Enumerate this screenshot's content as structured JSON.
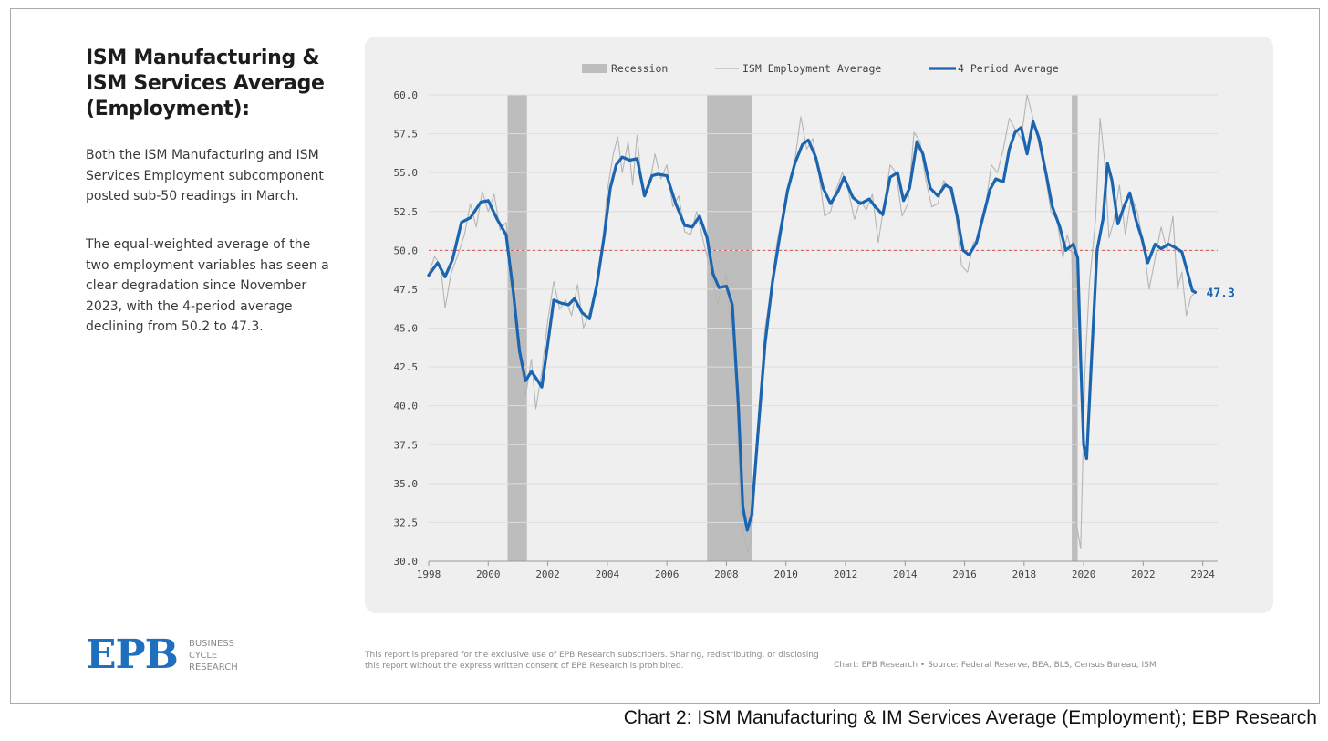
{
  "side": {
    "title": "ISM Manufacturing & ISM Services Average (Employment):",
    "paragraph1": "Both the ISM Manufacturing and ISM Services Employment subcomponent posted sub-50 readings in March.",
    "paragraph2": "The equal-weighted average of the two employment variables has seen a clear degradation since November 2023, with the 4-period average declining from 50.2 to 47.3."
  },
  "logo": {
    "mark": "EPB",
    "line1": "BUSINESS",
    "line2": "CYCLE",
    "line3": "RESEARCH",
    "color": "#1f6fbf"
  },
  "footer": {
    "disclaimer": "This report is prepared for the exclusive use of EPB Research subscribers. Sharing, redistributing, or disclosing this report without the express written consent of EPB Research is prohibited.",
    "credit": "Chart: EPB Research  •  Source: Federal Reserve, BEA, BLS, Census Bureau, ISM"
  },
  "caption": "Chart 2: ISM Manufacturing & IM Services Average (Employment); EBP Research",
  "chart_data": {
    "type": "line",
    "title": "",
    "xlabel": "",
    "ylabel": "",
    "xlim": [
      1998,
      2024.5
    ],
    "ylim": [
      30,
      60
    ],
    "x_ticks": [
      1998,
      2000,
      2002,
      2004,
      2006,
      2008,
      2010,
      2012,
      2014,
      2016,
      2018,
      2020,
      2022,
      2024
    ],
    "y_ticks": [
      "30.0",
      "32.5",
      "35.0",
      "37.5",
      "40.0",
      "42.5",
      "45.0",
      "47.5",
      "50.0",
      "52.5",
      "55.0",
      "57.5",
      "60.0"
    ],
    "grid": true,
    "legend_position": "top-center",
    "reference_line": {
      "y": 50,
      "color": "#d9534f"
    },
    "recessions": {
      "name": "Recession",
      "color": "#bdbdbd",
      "periods": [
        [
          2000.65,
          2001.3
        ],
        [
          2007.35,
          2008.85
        ],
        [
          2019.6,
          2019.8
        ]
      ]
    },
    "end_label": "47.3",
    "series": [
      {
        "name": "ISM Employment Average",
        "color": "#b5b5b5",
        "points": [
          [
            1998.0,
            48.5
          ],
          [
            1998.2,
            49.6
          ],
          [
            1998.4,
            49.0
          ],
          [
            1998.55,
            46.3
          ],
          [
            1998.75,
            48.5
          ],
          [
            1999.0,
            49.8
          ],
          [
            1999.2,
            51.0
          ],
          [
            1999.4,
            53.0
          ],
          [
            1999.6,
            51.5
          ],
          [
            1999.8,
            53.8
          ],
          [
            2000.0,
            52.5
          ],
          [
            2000.2,
            53.6
          ],
          [
            2000.4,
            51.3
          ],
          [
            2000.6,
            51.8
          ],
          [
            2000.8,
            47.5
          ],
          [
            2000.95,
            44.5
          ],
          [
            2001.1,
            43.0
          ],
          [
            2001.25,
            40.6
          ],
          [
            2001.45,
            43.0
          ],
          [
            2001.6,
            39.8
          ],
          [
            2001.8,
            42.2
          ],
          [
            2002.0,
            45.5
          ],
          [
            2002.2,
            48.0
          ],
          [
            2002.4,
            46.2
          ],
          [
            2002.6,
            46.8
          ],
          [
            2002.8,
            45.8
          ],
          [
            2003.0,
            47.8
          ],
          [
            2003.2,
            45.0
          ],
          [
            2003.4,
            46.0
          ],
          [
            2003.6,
            47.5
          ],
          [
            2003.8,
            49.5
          ],
          [
            2004.0,
            53.8
          ],
          [
            2004.2,
            56.2
          ],
          [
            2004.35,
            57.3
          ],
          [
            2004.5,
            55.0
          ],
          [
            2004.7,
            57.0
          ],
          [
            2004.85,
            54.2
          ],
          [
            2005.0,
            57.4
          ],
          [
            2005.2,
            53.5
          ],
          [
            2005.4,
            54.0
          ],
          [
            2005.6,
            56.2
          ],
          [
            2005.8,
            54.6
          ],
          [
            2006.0,
            55.5
          ],
          [
            2006.2,
            52.8
          ],
          [
            2006.4,
            53.5
          ],
          [
            2006.6,
            51.2
          ],
          [
            2006.8,
            51.0
          ],
          [
            2007.0,
            52.5
          ],
          [
            2007.2,
            50.8
          ],
          [
            2007.35,
            49.6
          ],
          [
            2007.5,
            48.5
          ],
          [
            2007.7,
            46.5
          ],
          [
            2007.85,
            47.6
          ],
          [
            2008.0,
            48.5
          ],
          [
            2008.15,
            45.0
          ],
          [
            2008.3,
            44.0
          ],
          [
            2008.45,
            33.5
          ],
          [
            2008.6,
            31.5
          ],
          [
            2008.75,
            30.5
          ],
          [
            2008.9,
            33.0
          ],
          [
            2009.1,
            40.0
          ],
          [
            2009.3,
            45.0
          ],
          [
            2009.5,
            47.5
          ],
          [
            2009.7,
            50.5
          ],
          [
            2009.9,
            52.5
          ],
          [
            2010.1,
            54.0
          ],
          [
            2010.3,
            55.8
          ],
          [
            2010.5,
            58.6
          ],
          [
            2010.7,
            56.5
          ],
          [
            2010.9,
            57.2
          ],
          [
            2011.1,
            55.0
          ],
          [
            2011.3,
            52.2
          ],
          [
            2011.5,
            52.5
          ],
          [
            2011.7,
            54.0
          ],
          [
            2011.9,
            55.0
          ],
          [
            2012.1,
            53.8
          ],
          [
            2012.3,
            52.0
          ],
          [
            2012.5,
            53.2
          ],
          [
            2012.7,
            52.6
          ],
          [
            2012.9,
            53.6
          ],
          [
            2013.1,
            50.5
          ],
          [
            2013.3,
            53.0
          ],
          [
            2013.5,
            55.5
          ],
          [
            2013.7,
            55.0
          ],
          [
            2013.9,
            52.2
          ],
          [
            2014.1,
            53.0
          ],
          [
            2014.3,
            57.6
          ],
          [
            2014.5,
            57.0
          ],
          [
            2014.7,
            54.5
          ],
          [
            2014.9,
            52.8
          ],
          [
            2015.1,
            53.0
          ],
          [
            2015.3,
            54.5
          ],
          [
            2015.5,
            54.0
          ],
          [
            2015.7,
            52.4
          ],
          [
            2015.9,
            49.0
          ],
          [
            2016.1,
            48.6
          ],
          [
            2016.3,
            50.5
          ],
          [
            2016.5,
            50.8
          ],
          [
            2016.7,
            52.8
          ],
          [
            2016.9,
            55.5
          ],
          [
            2017.1,
            55.0
          ],
          [
            2017.3,
            56.5
          ],
          [
            2017.5,
            58.5
          ],
          [
            2017.7,
            57.8
          ],
          [
            2017.9,
            57.2
          ],
          [
            2018.1,
            60.0
          ],
          [
            2018.3,
            58.5
          ],
          [
            2018.5,
            56.8
          ],
          [
            2018.7,
            55.0
          ],
          [
            2018.9,
            52.5
          ],
          [
            2019.1,
            52.0
          ],
          [
            2019.3,
            49.5
          ],
          [
            2019.45,
            51.0
          ],
          [
            2019.6,
            49.8
          ],
          [
            2019.75,
            32.5
          ],
          [
            2019.9,
            30.8
          ],
          [
            2020.05,
            42.5
          ],
          [
            2020.2,
            48.0
          ],
          [
            2020.4,
            52.0
          ],
          [
            2020.55,
            58.5
          ],
          [
            2020.7,
            55.8
          ],
          [
            2020.85,
            50.8
          ],
          [
            2021.0,
            51.8
          ],
          [
            2021.2,
            54.2
          ],
          [
            2021.4,
            51.0
          ],
          [
            2021.6,
            53.5
          ],
          [
            2021.8,
            52.5
          ],
          [
            2022.0,
            50.5
          ],
          [
            2022.2,
            47.5
          ],
          [
            2022.4,
            49.5
          ],
          [
            2022.6,
            51.5
          ],
          [
            2022.8,
            50.0
          ],
          [
            2023.0,
            52.2
          ],
          [
            2023.15,
            47.5
          ],
          [
            2023.3,
            48.6
          ],
          [
            2023.45,
            45.8
          ],
          [
            2023.6,
            47.0
          ],
          [
            2023.75,
            47.3
          ]
        ]
      },
      {
        "name": "4 Period Average",
        "color": "#1b64b0",
        "points": [
          [
            1998.0,
            48.4
          ],
          [
            1998.3,
            49.2
          ],
          [
            1998.55,
            48.3
          ],
          [
            1998.8,
            49.4
          ],
          [
            1999.1,
            51.8
          ],
          [
            1999.4,
            52.1
          ],
          [
            1999.75,
            53.1
          ],
          [
            2000.0,
            53.2
          ],
          [
            2000.3,
            52.0
          ],
          [
            2000.6,
            51.0
          ],
          [
            2000.85,
            47.2
          ],
          [
            2001.05,
            43.5
          ],
          [
            2001.25,
            41.6
          ],
          [
            2001.45,
            42.2
          ],
          [
            2001.6,
            41.8
          ],
          [
            2001.8,
            41.2
          ],
          [
            2002.0,
            44.0
          ],
          [
            2002.2,
            46.8
          ],
          [
            2002.45,
            46.6
          ],
          [
            2002.7,
            46.5
          ],
          [
            2002.9,
            46.9
          ],
          [
            2003.15,
            46.0
          ],
          [
            2003.4,
            45.6
          ],
          [
            2003.65,
            47.8
          ],
          [
            2003.9,
            51.0
          ],
          [
            2004.1,
            54.0
          ],
          [
            2004.3,
            55.5
          ],
          [
            2004.5,
            56.0
          ],
          [
            2004.75,
            55.8
          ],
          [
            2005.0,
            55.9
          ],
          [
            2005.25,
            53.5
          ],
          [
            2005.5,
            54.8
          ],
          [
            2005.7,
            54.9
          ],
          [
            2006.0,
            54.8
          ],
          [
            2006.3,
            53.0
          ],
          [
            2006.6,
            51.6
          ],
          [
            2006.85,
            51.5
          ],
          [
            2007.1,
            52.2
          ],
          [
            2007.35,
            50.8
          ],
          [
            2007.55,
            48.5
          ],
          [
            2007.75,
            47.6
          ],
          [
            2008.0,
            47.7
          ],
          [
            2008.2,
            46.5
          ],
          [
            2008.4,
            40.0
          ],
          [
            2008.55,
            33.5
          ],
          [
            2008.7,
            32.0
          ],
          [
            2008.85,
            33.0
          ],
          [
            2009.05,
            38.0
          ],
          [
            2009.3,
            44.0
          ],
          [
            2009.55,
            48.0
          ],
          [
            2009.8,
            51.0
          ],
          [
            2010.05,
            53.8
          ],
          [
            2010.3,
            55.6
          ],
          [
            2010.55,
            56.8
          ],
          [
            2010.75,
            57.1
          ],
          [
            2011.0,
            56.0
          ],
          [
            2011.25,
            54.0
          ],
          [
            2011.5,
            53.0
          ],
          [
            2011.75,
            53.8
          ],
          [
            2011.95,
            54.7
          ],
          [
            2012.25,
            53.4
          ],
          [
            2012.5,
            53.0
          ],
          [
            2012.8,
            53.3
          ],
          [
            2013.0,
            52.8
          ],
          [
            2013.25,
            52.3
          ],
          [
            2013.5,
            54.7
          ],
          [
            2013.75,
            55.0
          ],
          [
            2013.95,
            53.2
          ],
          [
            2014.15,
            54.0
          ],
          [
            2014.4,
            57.0
          ],
          [
            2014.6,
            56.2
          ],
          [
            2014.85,
            54.0
          ],
          [
            2015.1,
            53.5
          ],
          [
            2015.35,
            54.2
          ],
          [
            2015.55,
            54.0
          ],
          [
            2015.75,
            52.2
          ],
          [
            2015.95,
            50.0
          ],
          [
            2016.15,
            49.7
          ],
          [
            2016.4,
            50.5
          ],
          [
            2016.6,
            52.0
          ],
          [
            2016.85,
            53.9
          ],
          [
            2017.05,
            54.6
          ],
          [
            2017.3,
            54.4
          ],
          [
            2017.5,
            56.5
          ],
          [
            2017.7,
            57.6
          ],
          [
            2017.9,
            57.9
          ],
          [
            2018.1,
            56.2
          ],
          [
            2018.3,
            58.3
          ],
          [
            2018.5,
            57.2
          ],
          [
            2018.75,
            54.8
          ],
          [
            2018.95,
            52.8
          ],
          [
            2019.2,
            51.5
          ],
          [
            2019.4,
            50.0
          ],
          [
            2019.65,
            50.4
          ],
          [
            2019.8,
            49.5
          ],
          [
            2019.9,
            43.0
          ],
          [
            2020.0,
            37.5
          ],
          [
            2020.1,
            36.6
          ],
          [
            2020.25,
            42.5
          ],
          [
            2020.45,
            50.0
          ],
          [
            2020.65,
            52.0
          ],
          [
            2020.8,
            55.6
          ],
          [
            2020.95,
            54.5
          ],
          [
            2021.15,
            51.7
          ],
          [
            2021.35,
            52.8
          ],
          [
            2021.55,
            53.7
          ],
          [
            2021.75,
            52.0
          ],
          [
            2021.95,
            50.8
          ],
          [
            2022.15,
            49.2
          ],
          [
            2022.4,
            50.4
          ],
          [
            2022.6,
            50.1
          ],
          [
            2022.85,
            50.4
          ],
          [
            2023.05,
            50.2
          ],
          [
            2023.3,
            49.9
          ],
          [
            2023.5,
            48.5
          ],
          [
            2023.65,
            47.4
          ],
          [
            2023.75,
            47.3
          ]
        ]
      }
    ]
  }
}
